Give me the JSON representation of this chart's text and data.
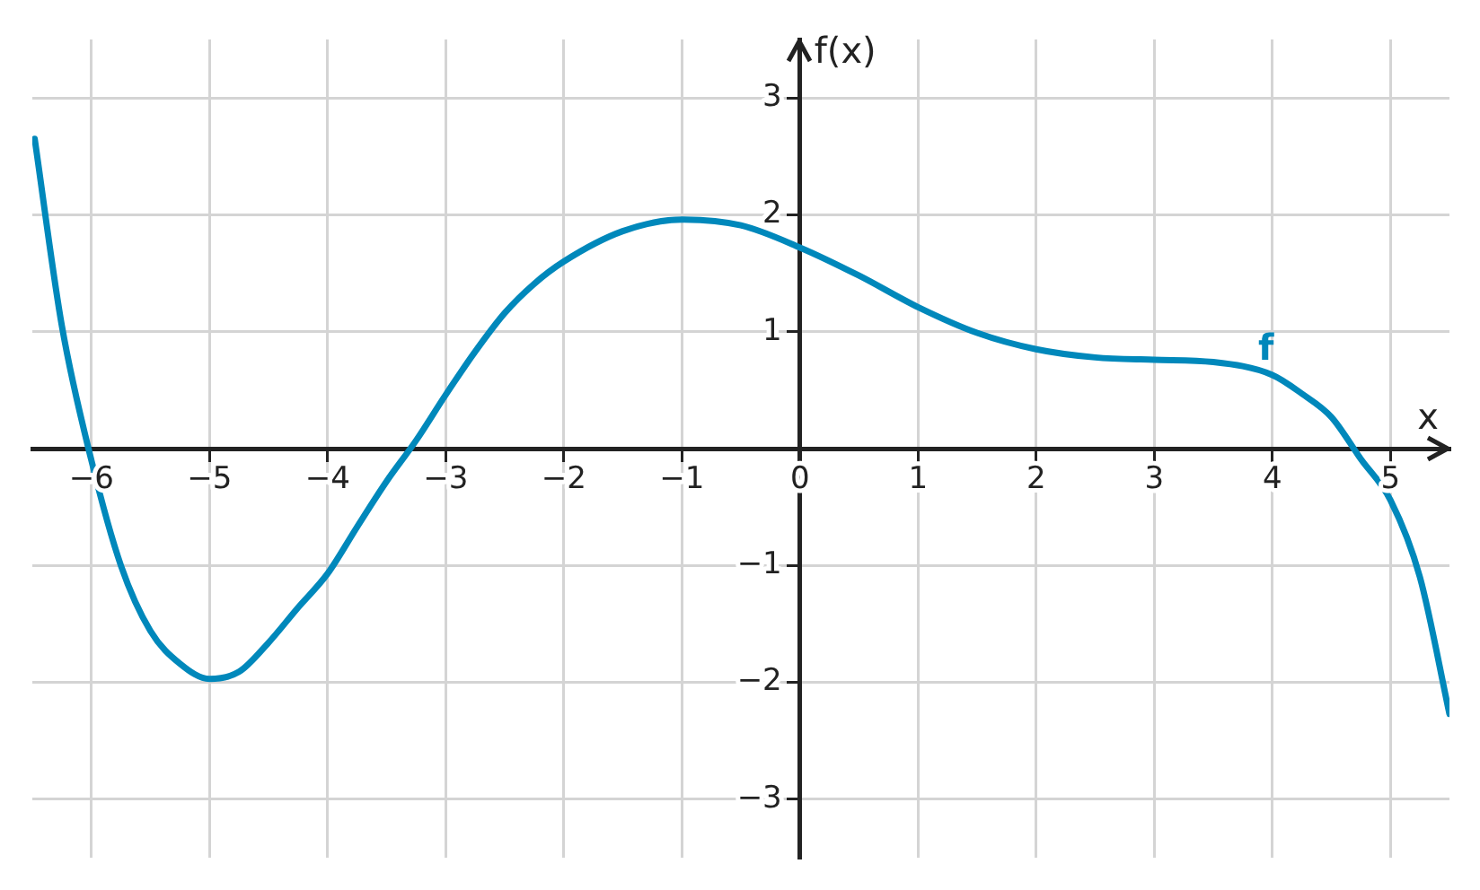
{
  "chart_data": {
    "type": "line",
    "xlabel": "x",
    "ylabel": "f(x)",
    "xlim": [
      -6.5,
      5.5
    ],
    "ylim": [
      -3.5,
      3.5
    ],
    "xticks": [
      -6,
      -5,
      -4,
      -3,
      -2,
      -1,
      0,
      1,
      2,
      3,
      4,
      5
    ],
    "yticks": [
      -3,
      -2,
      -1,
      1,
      2,
      3
    ],
    "grid": true,
    "marker": "none",
    "line_style": "solid",
    "series": [
      {
        "name": "f",
        "color": "#0088bb",
        "x": [
          -6.48,
          -6.25,
          -6,
          -5.75,
          -5.5,
          -5.25,
          -5,
          -4.75,
          -4.5,
          -4.25,
          -4,
          -3.75,
          -3.5,
          -3.25,
          -3,
          -2.75,
          -2.5,
          -2.25,
          -2,
          -1.5,
          -1,
          -0.5,
          0,
          0.5,
          1,
          1.5,
          2,
          2.5,
          3,
          3.5,
          4,
          4.25,
          4.5,
          4.75,
          5,
          5.25,
          5.5
        ],
        "values": [
          2.65,
          1.05,
          -0.1,
          -1.0,
          -1.56,
          -1.84,
          -1.97,
          -1.91,
          -1.66,
          -1.36,
          -1.07,
          -0.67,
          -0.28,
          0.07,
          0.46,
          0.83,
          1.16,
          1.41,
          1.6,
          1.86,
          1.96,
          1.91,
          1.72,
          1.48,
          1.21,
          0.99,
          0.85,
          0.78,
          0.76,
          0.74,
          0.63,
          0.47,
          0.27,
          -0.09,
          -0.44,
          -1.1,
          -2.27
        ]
      }
    ]
  }
}
